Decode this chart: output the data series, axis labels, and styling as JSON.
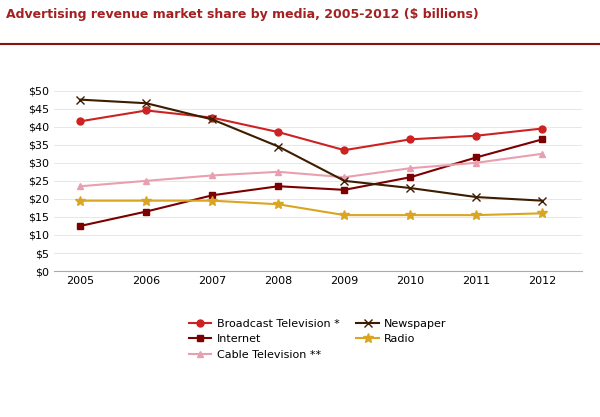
{
  "title": "Advertising revenue market share by media, 2005-2012 ($ billions)",
  "title_color": "#A52020",
  "years": [
    2005,
    2006,
    2007,
    2008,
    2009,
    2010,
    2011,
    2012
  ],
  "series": {
    "Broadcast Television *": {
      "values": [
        41.5,
        44.5,
        42.5,
        38.5,
        33.5,
        36.5,
        37.5,
        39.5
      ],
      "color": "#CC2222",
      "marker": "o",
      "linewidth": 1.5,
      "markersize": 5
    },
    "Internet": {
      "values": [
        12.5,
        16.5,
        21.0,
        23.5,
        22.5,
        26.0,
        31.5,
        36.5
      ],
      "color": "#7B0000",
      "marker": "s",
      "linewidth": 1.5,
      "markersize": 5
    },
    "Cable Television **": {
      "values": [
        23.5,
        25.0,
        26.5,
        27.5,
        26.0,
        28.5,
        30.0,
        32.5
      ],
      "color": "#E8A0B0",
      "marker": "^",
      "linewidth": 1.5,
      "markersize": 5
    },
    "Newspaper": {
      "values": [
        47.5,
        46.5,
        42.0,
        34.5,
        25.0,
        23.0,
        20.5,
        19.5
      ],
      "color": "#3D1C00",
      "marker": "x",
      "linewidth": 1.5,
      "markersize": 6
    },
    "Radio": {
      "values": [
        19.5,
        19.5,
        19.5,
        18.5,
        15.5,
        15.5,
        15.5,
        16.0
      ],
      "color": "#DAA520",
      "marker": "*",
      "linewidth": 1.5,
      "markersize": 7
    }
  },
  "ylim": [
    0,
    52
  ],
  "yticks": [
    0,
    5,
    10,
    15,
    20,
    25,
    30,
    35,
    40,
    45,
    50
  ],
  "background_color": "#FFFFFF",
  "figsize": [
    6.0,
    4.17
  ],
  "dpi": 100,
  "title_line_color": "#8B1010",
  "spine_color": "#AAAAAA",
  "grid_color": "#DDDDDD"
}
